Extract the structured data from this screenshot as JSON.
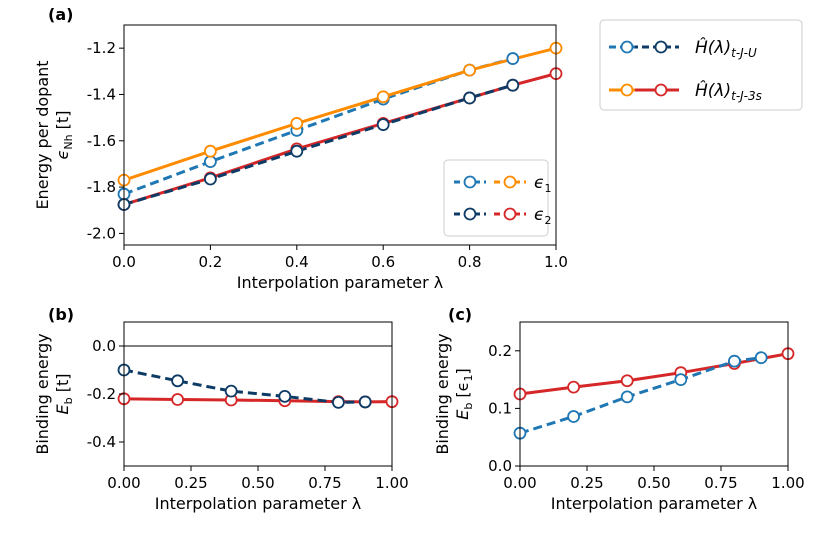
{
  "colors": {
    "blue": "#1f77b4",
    "orange": "#ff8c00",
    "navy": "#0d3b66",
    "red": "#d62728",
    "zero_line": "#808080"
  },
  "legend_top": {
    "items": [
      {
        "label": "Ĥ(λ)",
        "subscript": "t-J-U",
        "marker_color": "#1f77b4",
        "line_color": "#0d3b66",
        "dashed": true
      },
      {
        "label": "Ĥ(λ)",
        "subscript": "t-J-3s",
        "marker_color": "#ff8c00",
        "line_color": "#d62728",
        "dashed": false
      }
    ]
  },
  "chart_data": [
    {
      "id": "a",
      "panel_label": "(a)",
      "type": "line",
      "xlabel": "Interpolation parameter λ",
      "ylabel_line1": "Energy per dopant",
      "ylabel_line2": "ϵ",
      "ylabel_sub": "Nh",
      "ylabel_unit": " [t]",
      "xlim": [
        0.0,
        1.0
      ],
      "ylim": [
        -2.05,
        -1.1
      ],
      "xticks": [
        "0.0",
        "0.2",
        "0.4",
        "0.6",
        "0.8",
        "1.0"
      ],
      "yticks": [
        "-2.0",
        "-1.8",
        "-1.6",
        "-1.4",
        "-1.2"
      ],
      "series": [
        {
          "name": "ϵ1 t-J-U",
          "color": "#1f77b4",
          "dashed": true,
          "x": [
            0.0,
            0.2,
            0.4,
            0.6,
            0.8,
            0.9
          ],
          "y": [
            -1.83,
            -1.69,
            -1.555,
            -1.42,
            -1.295,
            -1.245
          ]
        },
        {
          "name": "ϵ1 t-J-3s",
          "color": "#ff8c00",
          "dashed": false,
          "x": [
            0.0,
            0.2,
            0.4,
            0.6,
            0.8,
            1.0
          ],
          "y": [
            -1.77,
            -1.645,
            -1.525,
            -1.41,
            -1.295,
            -1.2
          ]
        },
        {
          "name": "ϵ2 t-J-3s",
          "color": "#d62728",
          "dashed": false,
          "x": [
            0.0,
            0.2,
            0.4,
            0.6,
            0.8,
            0.9,
            1.0
          ],
          "y": [
            -1.875,
            -1.76,
            -1.635,
            -1.525,
            -1.415,
            -1.36,
            -1.31
          ]
        },
        {
          "name": "ϵ2 t-J-U",
          "color": "#0d3b66",
          "dashed": true,
          "x": [
            0.0,
            0.2,
            0.4,
            0.6,
            0.8,
            0.9
          ],
          "y": [
            -1.875,
            -1.765,
            -1.645,
            -1.53,
            -1.415,
            -1.36
          ]
        }
      ],
      "legend": [
        {
          "label": "ϵ",
          "sub": "1",
          "colors": [
            "#1f77b4",
            "#ff8c00"
          ]
        },
        {
          "label": "ϵ",
          "sub": "2",
          "colors": [
            "#0d3b66",
            "#d62728"
          ]
        }
      ],
      "legend_position": "lower-right"
    },
    {
      "id": "b",
      "panel_label": "(b)",
      "type": "line",
      "xlabel": "Interpolation parameter λ",
      "ylabel_line1": "Binding energy",
      "ylabel_line2": "E",
      "ylabel_sub": "b",
      "ylabel_unit": " [t]",
      "xlim": [
        0.0,
        1.0
      ],
      "ylim": [
        -0.5,
        0.1
      ],
      "xticks": [
        "0.00",
        "0.25",
        "0.50",
        "0.75",
        "1.00"
      ],
      "yticks": [
        "-0.4",
        "-0.2",
        "0.0"
      ],
      "zero_line": true,
      "series": [
        {
          "name": "t-J-3s",
          "color": "#d62728",
          "dashed": false,
          "x": [
            0.0,
            0.2,
            0.4,
            0.6,
            0.8,
            0.9,
            1.0
          ],
          "y": [
            -0.22,
            -0.223,
            -0.225,
            -0.228,
            -0.232,
            -0.233,
            -0.232
          ]
        },
        {
          "name": "t-J-U",
          "color": "#0d3b66",
          "dashed": true,
          "x": [
            0.0,
            0.2,
            0.4,
            0.6,
            0.8,
            0.9
          ],
          "y": [
            -0.1,
            -0.145,
            -0.188,
            -0.21,
            -0.235,
            -0.233
          ]
        }
      ]
    },
    {
      "id": "c",
      "panel_label": "(c)",
      "type": "line",
      "xlabel": "Interpolation parameter λ",
      "ylabel_line1": "Binding energy",
      "ylabel_line2": "E",
      "ylabel_sub": "b",
      "ylabel_unit": " [ϵ",
      "ylabel_unit_sub": "1",
      "ylabel_unit_end": "]",
      "xlim": [
        0.0,
        1.0
      ],
      "ylim": [
        0.0,
        0.25
      ],
      "xticks": [
        "0.00",
        "0.25",
        "0.50",
        "0.75",
        "1.00"
      ],
      "yticks": [
        "0.0",
        "0.1",
        "0.2"
      ],
      "series": [
        {
          "name": "t-J-3s",
          "color": "#d62728",
          "dashed": false,
          "x": [
            0.0,
            0.2,
            0.4,
            0.6,
            0.8,
            1.0
          ],
          "y": [
            0.125,
            0.137,
            0.148,
            0.162,
            0.178,
            0.195
          ]
        },
        {
          "name": "t-J-U",
          "color": "#1f77b4",
          "dashed": true,
          "x": [
            0.0,
            0.2,
            0.4,
            0.6,
            0.8,
            0.9
          ],
          "y": [
            0.057,
            0.086,
            0.12,
            0.15,
            0.182,
            0.188
          ]
        }
      ]
    }
  ]
}
